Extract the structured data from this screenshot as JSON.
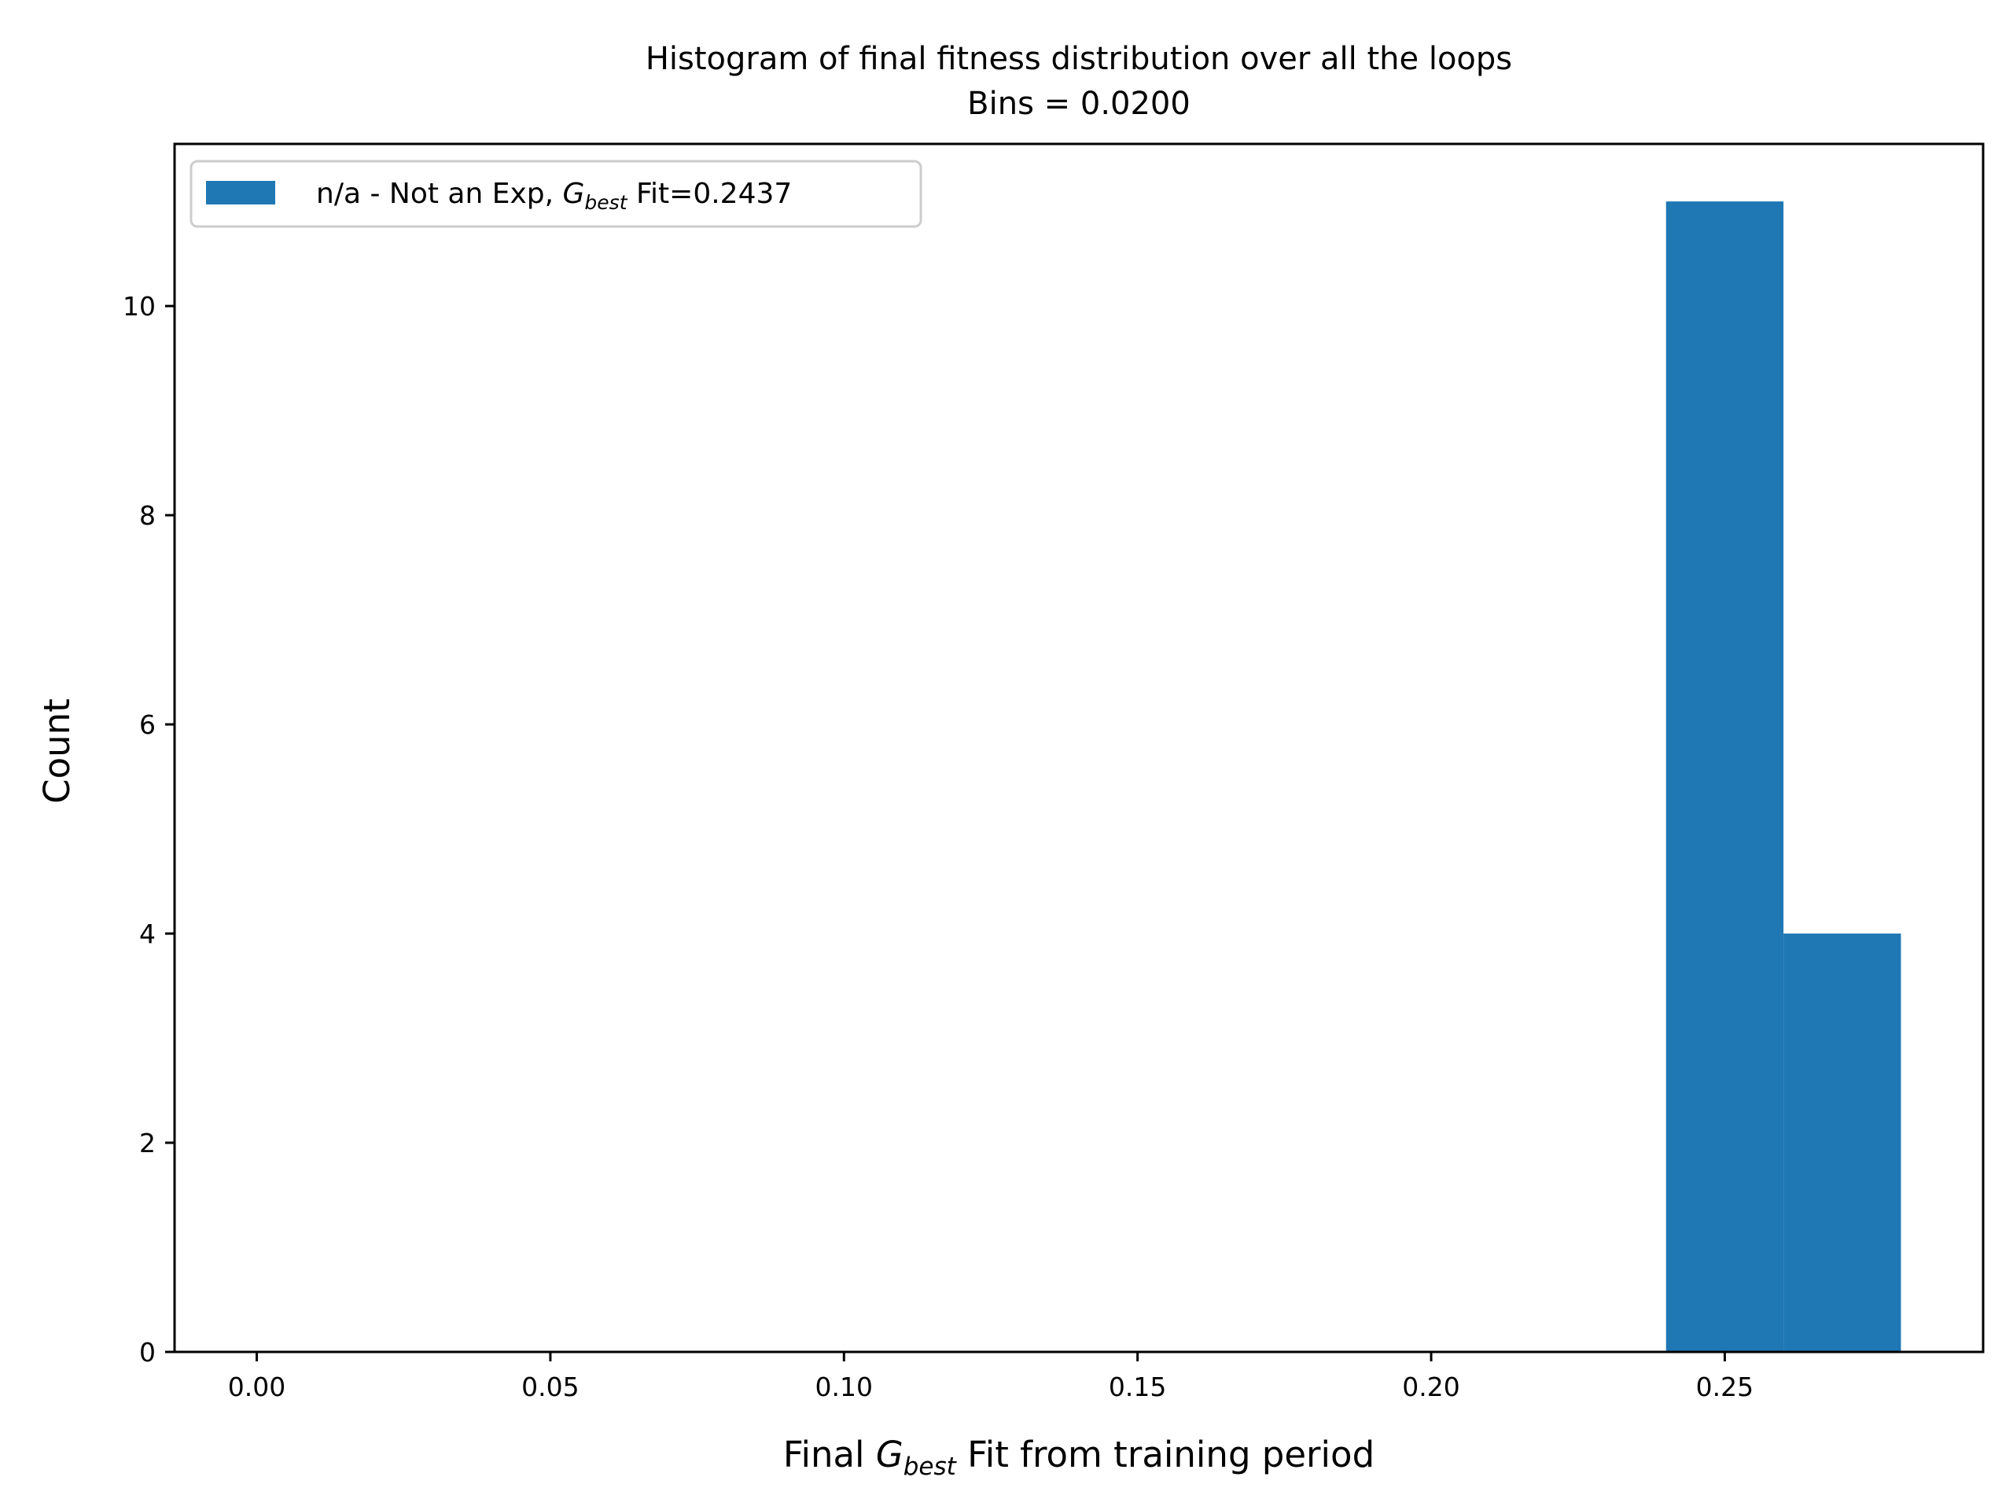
{
  "chart_data": {
    "type": "bar",
    "title_line1": "Histogram of final fitness distribution over all the loops",
    "title_line2": "Bins = 0.0200",
    "xlabel": {
      "prefix": "Final ",
      "symbol": "G",
      "subscript": "best",
      "suffix": " Fit from training period"
    },
    "ylabel": "Count",
    "xlim": [
      -0.014,
      0.294
    ],
    "ylim": [
      0,
      11.55
    ],
    "xticks": [
      {
        "value": 0.0,
        "label": "0.00"
      },
      {
        "value": 0.05,
        "label": "0.05"
      },
      {
        "value": 0.1,
        "label": "0.10"
      },
      {
        "value": 0.15,
        "label": "0.15"
      },
      {
        "value": 0.2,
        "label": "0.20"
      },
      {
        "value": 0.25,
        "label": "0.25"
      }
    ],
    "yticks": [
      {
        "value": 0,
        "label": "0"
      },
      {
        "value": 2,
        "label": "2"
      },
      {
        "value": 4,
        "label": "4"
      },
      {
        "value": 6,
        "label": "6"
      },
      {
        "value": 8,
        "label": "8"
      },
      {
        "value": 10,
        "label": "10"
      }
    ],
    "series": [
      {
        "name": "n/a - Not an Exp, G_best Fit=0.2437",
        "color": "#1f77b4",
        "bins": [
          {
            "start": 0.24,
            "end": 0.26,
            "count": 11
          },
          {
            "start": 0.26,
            "end": 0.28,
            "count": 4
          }
        ]
      }
    ],
    "legend": {
      "position": "upper-left",
      "prefix": "n/a - Not an Exp, ",
      "symbol": "G",
      "subscript": "best",
      "suffix": " Fit=0.2437"
    },
    "grid": false
  }
}
